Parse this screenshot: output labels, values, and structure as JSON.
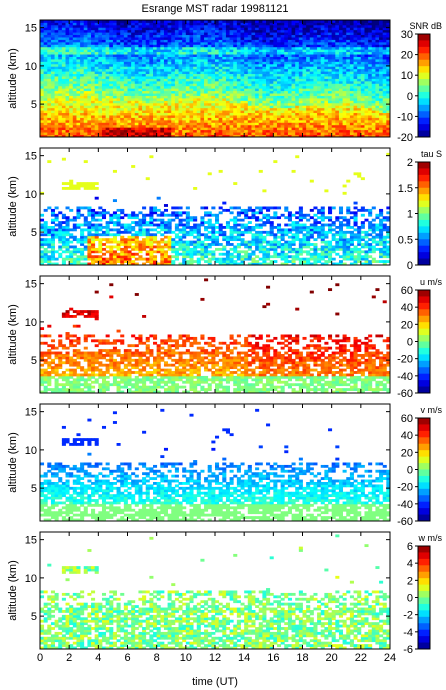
{
  "chart_data": {
    "title": "Esrange MST radar 19981121",
    "type": "heatmap",
    "xlabel": "time (UT)",
    "xlim": [
      0,
      24
    ],
    "xticks": [
      "0",
      "2",
      "4",
      "6",
      "8",
      "10",
      "12",
      "14",
      "16",
      "18",
      "20",
      "22",
      "24"
    ],
    "panels": [
      {
        "id": "snr",
        "ylabel": "altitude (km)",
        "ylim": [
          0.7,
          16
        ],
        "yticks": [
          "5",
          "10",
          "15"
        ],
        "colorbar_title": "SNR dB",
        "colorbar_range": [
          -20,
          30
        ],
        "colorbar_ticks": [
          "30",
          "20",
          "10",
          "0",
          "-10",
          "-20"
        ],
        "description_levels": {
          "near_ground": 22,
          "mid": 5,
          "top": -12
        }
      },
      {
        "id": "tau",
        "ylabel": "altitude (km)",
        "ylim": [
          0.7,
          16
        ],
        "yticks": [
          "5",
          "10",
          "15"
        ],
        "colorbar_title": "tau S",
        "colorbar_range": [
          0,
          2
        ],
        "colorbar_ticks": [
          "2",
          "1.5",
          "1",
          "0.5",
          "0"
        ]
      },
      {
        "id": "u",
        "ylabel": "altitude (km)",
        "ylim": [
          0.7,
          16
        ],
        "yticks": [
          "5",
          "10",
          "15"
        ],
        "colorbar_title": "u m/s",
        "colorbar_range": [
          -60,
          60
        ],
        "colorbar_ticks": [
          "60",
          "40",
          "20",
          "0",
          "-20",
          "-40",
          "-60"
        ]
      },
      {
        "id": "v",
        "ylabel": "altitude (km)",
        "ylim": [
          0.7,
          16
        ],
        "yticks": [
          "5",
          "10",
          "15"
        ],
        "colorbar_title": "v m/s",
        "colorbar_range": [
          -60,
          60
        ],
        "colorbar_ticks": [
          "60",
          "40",
          "20",
          "0",
          "-20",
          "-40",
          "-60"
        ]
      },
      {
        "id": "w",
        "ylabel": "altitude (km)",
        "ylim": [
          0.7,
          16
        ],
        "yticks": [
          "5",
          "10",
          "15"
        ],
        "colorbar_title": "w m/s",
        "colorbar_range": [
          -6,
          6
        ],
        "colorbar_ticks": [
          "6",
          "4",
          "2",
          "0",
          "-2",
          "-4",
          "-6"
        ]
      }
    ]
  }
}
